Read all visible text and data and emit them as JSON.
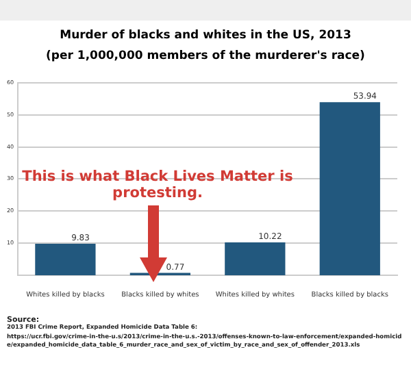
{
  "chart_data": {
    "type": "bar",
    "title": "Murder of blacks and whites in the US, 2013",
    "subtitle": "(per 1,000,000 members of the murderer's race)",
    "categories": [
      "Whites killed by blacks",
      "Blacks killed by whites",
      "Whites killed by whites",
      "Blacks killed by blacks"
    ],
    "values": [
      9.83,
      0.77,
      10.22,
      53.94
    ],
    "color": "#22587e",
    "ylim": [
      0,
      60
    ],
    "yticks": [
      10,
      20,
      30,
      40,
      50,
      60
    ],
    "grid": "y",
    "data_labels": true,
    "legend": false,
    "annotations": [
      "This is what Black Lives Matter is protesting.",
      "Source:",
      "2013 FBI Crime Report, Expanded Homicide Data Table 6:",
      "https://ucr.fbi.gov/crime-in-the-u.s/2013/crime-in-the-u.s.-2013/offenses-known-to-law-enforcement/expanded-homicide/expanded_homicide_data_table_6_murder_race_and_sex_of_victim_by_race_and_sex_of_offender_2013.xls"
    ]
  }
}
